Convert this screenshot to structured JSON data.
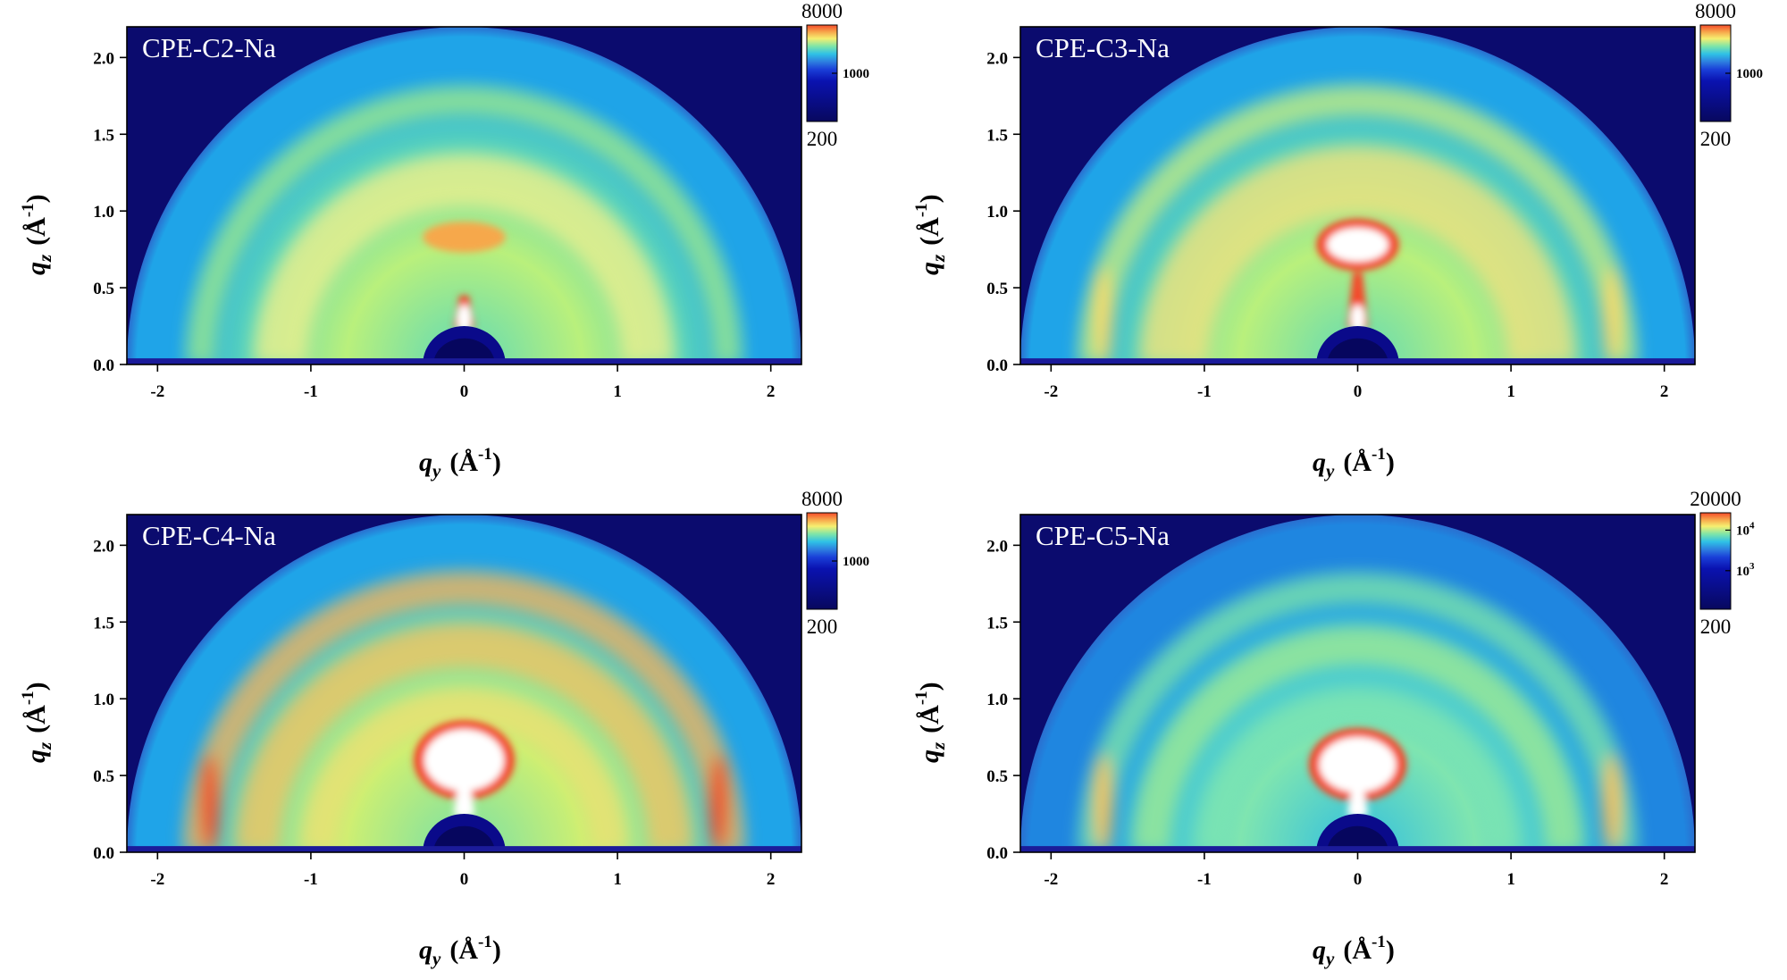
{
  "chart_data": [
    {
      "type": "heatmap",
      "panel_label": "CPE-C2-Na",
      "xlabel": {
        "sym": "q",
        "sub": "y",
        "unit": "Å",
        "exp": "-1"
      },
      "ylabel": {
        "sym": "q",
        "sub": "z",
        "unit": "Å",
        "exp": "-1"
      },
      "xlim": [
        -2.2,
        2.2
      ],
      "ylim": [
        0,
        2.2
      ],
      "xticks": [
        {
          "value": -2,
          "label": "-2"
        },
        {
          "value": -1,
          "label": "-1"
        },
        {
          "value": 0,
          "label": "0"
        },
        {
          "value": 1,
          "label": "1"
        },
        {
          "value": 2,
          "label": "2"
        }
      ],
      "yticks": [
        {
          "value": 0,
          "label": "0.0"
        },
        {
          "value": 0.5,
          "label": "0.5"
        },
        {
          "value": 1,
          "label": "1.0"
        },
        {
          "value": 1.5,
          "label": "1.5"
        },
        {
          "value": 2,
          "label": "2.0"
        }
      ],
      "colorbar": {
        "max_label": "8000",
        "min_label": "200",
        "tick_labels": [
          {
            "label": "1000",
            "frac": 0.5
          }
        ],
        "scale": "log"
      },
      "colors": {
        "background": "#0b0b6e",
        "outer_ring": "#1fa4e8",
        "body": "#5fd9b6",
        "inner": "#b9f07c",
        "bright": "#ffe36a",
        "hot": "#f44a2a",
        "core": "#ffffff"
      },
      "features": {
        "q_max": 2.2,
        "bands": [
          {
            "q": 1.72,
            "w": 0.18,
            "color": "#9fe98a"
          },
          {
            "q": 1.2,
            "w": 0.35,
            "color": "#f6f08a"
          }
        ],
        "spots": [
          {
            "qy": 0,
            "qz": 0.83,
            "ry": 0.27,
            "rz": 0.1,
            "color": "#f6a84b"
          }
        ],
        "streak": {
          "qz_top": 0.45,
          "color": "#f44a2a"
        },
        "side_arcs": []
      }
    },
    {
      "type": "heatmap",
      "panel_label": "CPE-C3-Na",
      "xlabel": {
        "sym": "q",
        "sub": "y",
        "unit": "Å",
        "exp": "-1"
      },
      "ylabel": {
        "sym": "q",
        "sub": "z",
        "unit": "Å",
        "exp": "-1"
      },
      "xlim": [
        -2.2,
        2.2
      ],
      "ylim": [
        0,
        2.2
      ],
      "xticks": [
        {
          "value": -2,
          "label": "-2"
        },
        {
          "value": -1,
          "label": "-1"
        },
        {
          "value": 0,
          "label": "0"
        },
        {
          "value": 1,
          "label": "1"
        },
        {
          "value": 2,
          "label": "2"
        }
      ],
      "yticks": [
        {
          "value": 0,
          "label": "0.0"
        },
        {
          "value": 0.5,
          "label": "0.5"
        },
        {
          "value": 1,
          "label": "1.0"
        },
        {
          "value": 1.5,
          "label": "1.5"
        },
        {
          "value": 2,
          "label": "2.0"
        }
      ],
      "colorbar": {
        "max_label": "8000",
        "min_label": "200",
        "tick_labels": [
          {
            "label": "1000",
            "frac": 0.5
          }
        ],
        "scale": "log"
      },
      "colors": {
        "background": "#0b0b6e",
        "outer_ring": "#1fa4e8",
        "body": "#5fd9b6",
        "inner": "#b9f07c",
        "bright": "#ffe36a",
        "hot": "#f44a2a",
        "core": "#ffffff"
      },
      "features": {
        "q_max": 2.2,
        "bands": [
          {
            "q": 1.72,
            "w": 0.2,
            "color": "#c9ef7c"
          },
          {
            "q": 1.2,
            "w": 0.45,
            "color": "#f8e27a"
          }
        ],
        "spots": [
          {
            "qy": 0,
            "qz": 0.78,
            "ry": 0.27,
            "rz": 0.17,
            "color": "#f44a2a"
          },
          {
            "qy": 0,
            "qz": 0.78,
            "ry": 0.2,
            "rz": 0.11,
            "color": "#ffffff"
          }
        ],
        "streak": {
          "qz_top": 0.6,
          "color": "#f44a2a"
        },
        "side_arcs": [
          {
            "q": 1.66,
            "color": "#f8d96a"
          }
        ]
      }
    },
    {
      "type": "heatmap",
      "panel_label": "CPE-C4-Na",
      "xlabel": {
        "sym": "q",
        "sub": "y",
        "unit": "Å",
        "exp": "-1"
      },
      "ylabel": {
        "sym": "q",
        "sub": "z",
        "unit": "Å",
        "exp": "-1"
      },
      "xlim": [
        -2.2,
        2.2
      ],
      "ylim": [
        0,
        2.2
      ],
      "xticks": [
        {
          "value": -2,
          "label": "-2"
        },
        {
          "value": -1,
          "label": "-1"
        },
        {
          "value": 0,
          "label": "0"
        },
        {
          "value": 1,
          "label": "1"
        },
        {
          "value": 2,
          "label": "2"
        }
      ],
      "yticks": [
        {
          "value": 0,
          "label": "0.0"
        },
        {
          "value": 0.5,
          "label": "0.5"
        },
        {
          "value": 1,
          "label": "1.0"
        },
        {
          "value": 1.5,
          "label": "1.5"
        },
        {
          "value": 2,
          "label": "2.0"
        }
      ],
      "colorbar": {
        "max_label": "8000",
        "min_label": "200",
        "tick_labels": [
          {
            "label": "1000",
            "frac": 0.5
          }
        ],
        "scale": "log"
      },
      "colors": {
        "background": "#0b0b6e",
        "outer_ring": "#1fa4e8",
        "body": "#78e0a6",
        "inner": "#cdef72",
        "bright": "#ffc757",
        "hot": "#f44a2a",
        "core": "#ffffff"
      },
      "features": {
        "q_max": 2.2,
        "bands": [
          {
            "q": 1.72,
            "w": 0.22,
            "color": "#f7b15a"
          },
          {
            "q": 1.35,
            "w": 0.3,
            "color": "#f9c25e"
          },
          {
            "q": 0.95,
            "w": 0.25,
            "color": "#f0e070"
          }
        ],
        "spots": [
          {
            "qy": 0,
            "qz": 0.6,
            "ry": 0.33,
            "rz": 0.26,
            "color": "#f44a2a"
          },
          {
            "qy": 0,
            "qz": 0.6,
            "ry": 0.26,
            "rz": 0.2,
            "color": "#ffffff"
          }
        ],
        "streak": {
          "qz_top": 0.5,
          "color": "#ffffff"
        },
        "side_arcs": [
          {
            "q": 1.66,
            "color": "#ef4a2a"
          }
        ]
      }
    },
    {
      "type": "heatmap",
      "panel_label": "CPE-C5-Na",
      "xlabel": {
        "sym": "q",
        "sub": "y",
        "unit": "Å",
        "exp": "-1"
      },
      "ylabel": {
        "sym": "q",
        "sub": "z",
        "unit": "Å",
        "exp": "-1"
      },
      "xlim": [
        -2.2,
        2.2
      ],
      "ylim": [
        0,
        2.2
      ],
      "xticks": [
        {
          "value": -2,
          "label": "-2"
        },
        {
          "value": -1,
          "label": "-1"
        },
        {
          "value": 0,
          "label": "0"
        },
        {
          "value": 1,
          "label": "1"
        },
        {
          "value": 2,
          "label": "2"
        }
      ],
      "yticks": [
        {
          "value": 0,
          "label": "0.0"
        },
        {
          "value": 0.5,
          "label": "0.5"
        },
        {
          "value": 1,
          "label": "1.0"
        },
        {
          "value": 1.5,
          "label": "1.5"
        },
        {
          "value": 2,
          "label": "2.0"
        }
      ],
      "colorbar": {
        "max_label": "20000",
        "min_label": "200",
        "tick_labels": [
          {
            "label": "10",
            "exp": "4",
            "frac": 0.18
          },
          {
            "label": "10",
            "exp": "3",
            "frac": 0.6
          }
        ],
        "scale": "log"
      },
      "colors": {
        "background": "#0b0b6e",
        "outer_ring": "#1f86e0",
        "body": "#31bfe0",
        "inner": "#7fe5b0",
        "bright": "#ffe36a",
        "hot": "#f44a2a",
        "core": "#ffffff"
      },
      "features": {
        "q_max": 2.2,
        "bands": [
          {
            "q": 1.72,
            "w": 0.2,
            "color": "#7fe5a8"
          },
          {
            "q": 1.35,
            "w": 0.26,
            "color": "#a7ed8c"
          },
          {
            "q": 0.95,
            "w": 0.22,
            "color": "#7fe5b0"
          }
        ],
        "spots": [
          {
            "qy": 0,
            "qz": 0.57,
            "ry": 0.32,
            "rz": 0.24,
            "color": "#f44a2a"
          },
          {
            "qy": 0,
            "qz": 0.57,
            "ry": 0.25,
            "rz": 0.18,
            "color": "#ffffff"
          }
        ],
        "streak": {
          "qz_top": 0.45,
          "color": "#ffffff"
        },
        "side_arcs": [
          {
            "q": 1.66,
            "color": "#f7c15a"
          }
        ]
      }
    }
  ]
}
